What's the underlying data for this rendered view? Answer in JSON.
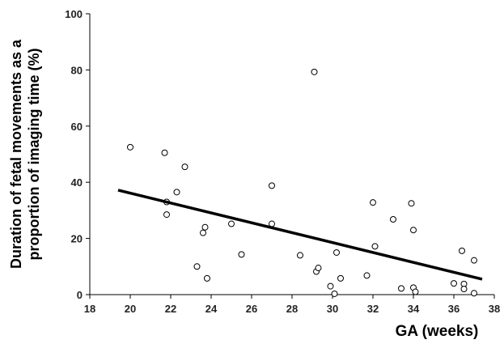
{
  "chart_data": {
    "type": "scatter",
    "title": "",
    "xlabel": "GA (weeks)",
    "ylabel_lines": [
      "Duration of fetal movements as a",
      "proportion of imaging time (%)"
    ],
    "xlim": [
      18,
      38
    ],
    "ylim": [
      0,
      100
    ],
    "xticks": [
      18,
      20,
      22,
      24,
      26,
      28,
      30,
      32,
      34,
      36,
      38
    ],
    "yticks": [
      0,
      20,
      40,
      60,
      80,
      100
    ],
    "grid": false,
    "legend": "none",
    "points": [
      {
        "x": 20.0,
        "y": 52.5
      },
      {
        "x": 21.7,
        "y": 50.5
      },
      {
        "x": 21.8,
        "y": 33.0
      },
      {
        "x": 21.8,
        "y": 28.5
      },
      {
        "x": 22.3,
        "y": 36.5
      },
      {
        "x": 22.7,
        "y": 45.5
      },
      {
        "x": 23.3,
        "y": 10.0
      },
      {
        "x": 23.6,
        "y": 22.0
      },
      {
        "x": 23.7,
        "y": 24.0
      },
      {
        "x": 23.8,
        "y": 5.8
      },
      {
        "x": 25.0,
        "y": 25.2
      },
      {
        "x": 25.5,
        "y": 14.3
      },
      {
        "x": 27.0,
        "y": 38.8
      },
      {
        "x": 27.0,
        "y": 25.2
      },
      {
        "x": 28.4,
        "y": 14.0
      },
      {
        "x": 29.1,
        "y": 79.3
      },
      {
        "x": 29.2,
        "y": 8.2
      },
      {
        "x": 29.3,
        "y": 9.5
      },
      {
        "x": 29.9,
        "y": 3.0
      },
      {
        "x": 30.1,
        "y": 0.3
      },
      {
        "x": 30.2,
        "y": 15.0
      },
      {
        "x": 30.4,
        "y": 5.8
      },
      {
        "x": 31.7,
        "y": 6.8
      },
      {
        "x": 32.0,
        "y": 32.8
      },
      {
        "x": 32.1,
        "y": 17.2
      },
      {
        "x": 33.0,
        "y": 26.8
      },
      {
        "x": 33.4,
        "y": 2.2
      },
      {
        "x": 33.9,
        "y": 32.5
      },
      {
        "x": 34.0,
        "y": 23.0
      },
      {
        "x": 34.0,
        "y": 2.5
      },
      {
        "x": 34.1,
        "y": 1.0
      },
      {
        "x": 36.0,
        "y": 4.0
      },
      {
        "x": 36.4,
        "y": 15.6
      },
      {
        "x": 36.5,
        "y": 3.8
      },
      {
        "x": 36.5,
        "y": 2.0
      },
      {
        "x": 37.0,
        "y": 12.2
      },
      {
        "x": 37.0,
        "y": 0.5
      }
    ],
    "trendline": {
      "x": [
        19.4,
        37.4
      ],
      "y": [
        37.2,
        5.5
      ]
    }
  }
}
